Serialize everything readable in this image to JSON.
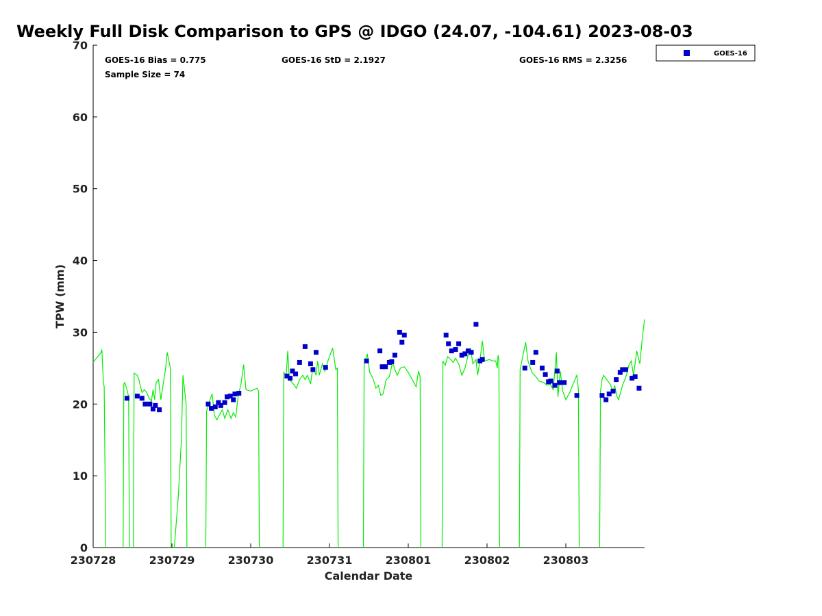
{
  "chart_data": {
    "type": "scatter",
    "title": "Weekly Full Disk Comparison to GPS @ IDGO (24.07, -104.61) 2023-08-03",
    "xlabel": "Calendar Date",
    "ylabel": "TPW (mm)",
    "xlim": [
      0,
      7.0
    ],
    "ylim": [
      0,
      70
    ],
    "grid": false,
    "legend_position": "top-right",
    "x_ticks": [
      {
        "value": 0,
        "label": "230728"
      },
      {
        "value": 1,
        "label": "230729"
      },
      {
        "value": 2,
        "label": "230730"
      },
      {
        "value": 3,
        "label": "230731"
      },
      {
        "value": 4,
        "label": "230801"
      },
      {
        "value": 5,
        "label": "230802"
      },
      {
        "value": 6,
        "label": "230803"
      }
    ],
    "y_ticks": [
      {
        "value": 0,
        "label": "0"
      },
      {
        "value": 10,
        "label": "10"
      },
      {
        "value": 20,
        "label": "20"
      },
      {
        "value": 30,
        "label": "30"
      },
      {
        "value": 40,
        "label": "40"
      },
      {
        "value": 50,
        "label": "50"
      },
      {
        "value": 60,
        "label": "60"
      },
      {
        "value": 70,
        "label": "70"
      }
    ],
    "stats": {
      "bias": "GOES-16 Bias = 0.775",
      "std": "GOES-16 StD = 2.1927",
      "rms": "GOES-16 RMS = 2.3256",
      "sample": "Sample Size = 74"
    },
    "series": [
      {
        "name": "GOES-16",
        "kind": "scatter",
        "color": "#0000cc",
        "points": [
          [
            0.43,
            20.8
          ],
          [
            0.56,
            21.1
          ],
          [
            0.62,
            20.8
          ],
          [
            0.66,
            20.0
          ],
          [
            0.72,
            20.0
          ],
          [
            0.76,
            19.3
          ],
          [
            0.79,
            19.8
          ],
          [
            0.84,
            19.2
          ],
          [
            1.46,
            20.0
          ],
          [
            1.5,
            19.4
          ],
          [
            1.55,
            19.6
          ],
          [
            1.59,
            20.2
          ],
          [
            1.62,
            19.8
          ],
          [
            1.67,
            20.2
          ],
          [
            1.7,
            21.0
          ],
          [
            1.74,
            21.1
          ],
          [
            1.78,
            20.6
          ],
          [
            1.8,
            21.4
          ],
          [
            1.85,
            21.5
          ],
          [
            2.46,
            23.9
          ],
          [
            2.5,
            23.6
          ],
          [
            2.53,
            24.6
          ],
          [
            2.57,
            24.2
          ],
          [
            2.62,
            25.8
          ],
          [
            2.69,
            28.0
          ],
          [
            2.76,
            25.6
          ],
          [
            2.79,
            24.8
          ],
          [
            2.83,
            27.2
          ],
          [
            2.95,
            25.1
          ],
          [
            3.47,
            26.0
          ],
          [
            3.64,
            27.4
          ],
          [
            3.67,
            25.2
          ],
          [
            3.71,
            25.2
          ],
          [
            3.76,
            25.8
          ],
          [
            3.79,
            25.9
          ],
          [
            3.83,
            26.8
          ],
          [
            3.89,
            30.0
          ],
          [
            3.92,
            28.6
          ],
          [
            3.95,
            29.6
          ],
          [
            4.48,
            29.6
          ],
          [
            4.51,
            28.4
          ],
          [
            4.55,
            27.4
          ],
          [
            4.6,
            27.6
          ],
          [
            4.64,
            28.4
          ],
          [
            4.68,
            26.8
          ],
          [
            4.72,
            27.0
          ],
          [
            4.76,
            27.4
          ],
          [
            4.8,
            27.2
          ],
          [
            4.86,
            31.1
          ],
          [
            4.91,
            26.0
          ],
          [
            4.94,
            26.2
          ],
          [
            5.48,
            25.0
          ],
          [
            5.58,
            25.8
          ],
          [
            5.62,
            27.2
          ],
          [
            5.7,
            25.0
          ],
          [
            5.74,
            24.1
          ],
          [
            5.78,
            23.1
          ],
          [
            5.81,
            23.2
          ],
          [
            5.86,
            22.6
          ],
          [
            5.89,
            24.6
          ],
          [
            5.92,
            23.0
          ],
          [
            5.98,
            23.0
          ],
          [
            6.14,
            21.2
          ],
          [
            6.46,
            21.2
          ],
          [
            6.51,
            20.6
          ],
          [
            6.55,
            21.4
          ],
          [
            6.6,
            21.8
          ],
          [
            6.64,
            23.4
          ],
          [
            6.69,
            24.4
          ],
          [
            6.72,
            24.8
          ],
          [
            6.76,
            24.8
          ],
          [
            6.84,
            23.6
          ],
          [
            6.88,
            23.8
          ],
          [
            6.93,
            22.2
          ]
        ]
      },
      {
        "name": "",
        "kind": "line",
        "color": "#00ee00",
        "segments": [
          [
            [
              0.0,
              25.8
            ],
            [
              0.05,
              26.5
            ],
            [
              0.1,
              27.2
            ],
            [
              0.11,
              27.6
            ],
            [
              0.13,
              23.0
            ],
            [
              0.14,
              22.4
            ],
            [
              0.16,
              0
            ]
          ],
          [
            [
              0.38,
              0
            ],
            [
              0.39,
              22.8
            ],
            [
              0.4,
              23.0
            ],
            [
              0.43,
              22.0
            ],
            [
              0.45,
              21.0
            ],
            [
              0.46,
              0
            ]
          ],
          [
            [
              0.51,
              0
            ],
            [
              0.52,
              24.3
            ],
            [
              0.56,
              24.0
            ],
            [
              0.58,
              23.4
            ],
            [
              0.62,
              21.6
            ],
            [
              0.65,
              22.0
            ],
            [
              0.68,
              21.6
            ],
            [
              0.71,
              20.8
            ],
            [
              0.74,
              20.4
            ],
            [
              0.76,
              22.0
            ],
            [
              0.78,
              20.6
            ],
            [
              0.8,
              23.0
            ],
            [
              0.83,
              23.4
            ],
            [
              0.86,
              20.6
            ],
            [
              0.89,
              22.8
            ],
            [
              0.92,
              25.0
            ],
            [
              0.94,
              27.2
            ],
            [
              0.98,
              25.0
            ],
            [
              0.99,
              0
            ]
          ],
          [
            [
              1.03,
              0
            ],
            [
              1.08,
              7.0
            ],
            [
              1.12,
              15.0
            ],
            [
              1.14,
              24.0
            ],
            [
              1.16,
              22.0
            ],
            [
              1.18,
              20.0
            ],
            [
              1.19,
              0
            ]
          ],
          [
            [
              1.43,
              0
            ],
            [
              1.44,
              19.0
            ],
            [
              1.48,
              20.5
            ],
            [
              1.51,
              21.4
            ],
            [
              1.54,
              18.4
            ],
            [
              1.57,
              17.8
            ],
            [
              1.61,
              18.6
            ],
            [
              1.64,
              19.2
            ],
            [
              1.67,
              18.0
            ],
            [
              1.71,
              19.2
            ],
            [
              1.75,
              18.0
            ],
            [
              1.78,
              18.8
            ],
            [
              1.81,
              18.2
            ],
            [
              1.84,
              21.0
            ],
            [
              1.88,
              23.0
            ],
            [
              1.91,
              25.5
            ],
            [
              1.94,
              22.0
            ],
            [
              2.0,
              21.8
            ],
            [
              2.08,
              22.2
            ],
            [
              2.1,
              21.8
            ],
            [
              2.11,
              0
            ]
          ],
          [
            [
              2.41,
              0
            ],
            [
              2.42,
              24.4
            ],
            [
              2.45,
              24.0
            ],
            [
              2.47,
              27.4
            ],
            [
              2.49,
              23.4
            ],
            [
              2.54,
              22.8
            ],
            [
              2.58,
              22.2
            ],
            [
              2.62,
              23.4
            ],
            [
              2.66,
              24.0
            ],
            [
              2.69,
              23.4
            ],
            [
              2.72,
              24.0
            ],
            [
              2.76,
              22.8
            ],
            [
              2.79,
              25.2
            ],
            [
              2.83,
              24.0
            ],
            [
              2.85,
              26.0
            ],
            [
              2.87,
              24.0
            ],
            [
              2.91,
              25.6
            ],
            [
              2.94,
              24.6
            ],
            [
              2.98,
              26.0
            ],
            [
              3.04,
              27.8
            ],
            [
              3.08,
              24.8
            ],
            [
              3.1,
              25.0
            ],
            [
              3.11,
              0
            ]
          ],
          [
            [
              3.43,
              0
            ],
            [
              3.44,
              25.6
            ],
            [
              3.48,
              27.0
            ],
            [
              3.51,
              24.4
            ],
            [
              3.55,
              23.6
            ],
            [
              3.59,
              22.2
            ],
            [
              3.62,
              22.6
            ],
            [
              3.65,
              21.2
            ],
            [
              3.68,
              21.4
            ],
            [
              3.72,
              23.4
            ],
            [
              3.76,
              23.8
            ],
            [
              3.8,
              25.8
            ],
            [
              3.83,
              24.8
            ],
            [
              3.86,
              24.0
            ],
            [
              3.9,
              25.0
            ],
            [
              3.95,
              25.2
            ],
            [
              4.0,
              24.4
            ],
            [
              4.05,
              23.4
            ],
            [
              4.1,
              22.4
            ],
            [
              4.13,
              24.6
            ],
            [
              4.15,
              23.8
            ],
            [
              4.16,
              0
            ]
          ],
          [
            [
              4.43,
              0
            ],
            [
              4.44,
              26.0
            ],
            [
              4.47,
              25.4
            ],
            [
              4.5,
              26.6
            ],
            [
              4.54,
              26.2
            ],
            [
              4.57,
              25.8
            ],
            [
              4.6,
              26.4
            ],
            [
              4.64,
              25.6
            ],
            [
              4.68,
              24.0
            ],
            [
              4.72,
              25.0
            ],
            [
              4.76,
              26.8
            ],
            [
              4.79,
              27.8
            ],
            [
              4.82,
              25.6
            ],
            [
              4.86,
              26.2
            ],
            [
              4.88,
              24.0
            ],
            [
              4.91,
              26.0
            ],
            [
              4.94,
              28.8
            ],
            [
              4.97,
              26.0
            ],
            [
              5.03,
              26.2
            ],
            [
              5.07,
              26.0
            ],
            [
              5.11,
              26.0
            ],
            [
              5.13,
              25.0
            ],
            [
              5.14,
              26.8
            ],
            [
              5.15,
              26.2
            ],
            [
              5.16,
              0
            ]
          ],
          [
            [
              5.41,
              0
            ],
            [
              5.42,
              24.8
            ],
            [
              5.46,
              27.0
            ],
            [
              5.49,
              28.6
            ],
            [
              5.52,
              26.0
            ],
            [
              5.57,
              24.4
            ],
            [
              5.62,
              23.8
            ],
            [
              5.66,
              23.2
            ],
            [
              5.72,
              23.0
            ],
            [
              5.76,
              22.6
            ],
            [
              5.8,
              22.8
            ],
            [
              5.84,
              22.0
            ],
            [
              5.88,
              27.2
            ],
            [
              5.9,
              21.0
            ],
            [
              5.93,
              24.6
            ],
            [
              5.96,
              21.8
            ],
            [
              6.0,
              20.6
            ],
            [
              6.05,
              21.6
            ],
            [
              6.1,
              23.0
            ],
            [
              6.14,
              24.0
            ],
            [
              6.16,
              22.0
            ],
            [
              6.17,
              0
            ]
          ],
          [
            [
              6.43,
              0
            ],
            [
              6.44,
              21.8
            ],
            [
              6.46,
              23.4
            ],
            [
              6.48,
              24.0
            ],
            [
              6.52,
              23.4
            ],
            [
              6.56,
              22.8
            ],
            [
              6.6,
              21.8
            ],
            [
              6.62,
              22.6
            ],
            [
              6.65,
              21.0
            ],
            [
              6.67,
              20.6
            ],
            [
              6.72,
              22.6
            ],
            [
              6.77,
              24.0
            ],
            [
              6.8,
              25.4
            ],
            [
              6.83,
              26.0
            ],
            [
              6.86,
              24.0
            ],
            [
              6.9,
              27.4
            ],
            [
              6.94,
              25.6
            ],
            [
              6.97,
              29.0
            ],
            [
              6.98,
              30.0
            ],
            [
              7.0,
              31.8
            ]
          ]
        ]
      }
    ]
  }
}
